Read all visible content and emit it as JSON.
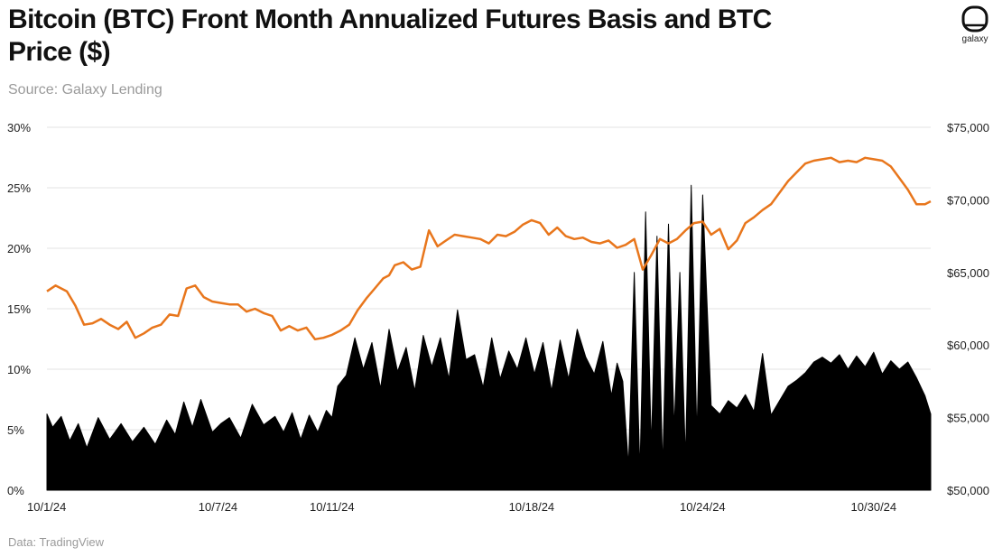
{
  "header": {
    "title": "Bitcoin (BTC) Front Month Annualized Futures Basis and BTC Price ($)",
    "subtitle": "Source: Galaxy Lending",
    "logo_text": "galaxy"
  },
  "footer": {
    "note": "Data: TradingView"
  },
  "colors": {
    "basis": "#000000",
    "price": "#e8761c",
    "grid": "#e3e3e3"
  },
  "chart_data": {
    "type": "area",
    "x_axis": {
      "start": "10/1/24",
      "end": "10/31/24",
      "tick_labels": [
        "10/1/24",
        "10/7/24",
        "10/11/24",
        "10/18/24",
        "10/24/24",
        "10/30/24"
      ],
      "tick_days": [
        0,
        6,
        10,
        17,
        23,
        29
      ]
    },
    "y_left": {
      "ylim": [
        0,
        30
      ],
      "ticks": [
        "0%",
        "5%",
        "10%",
        "15%",
        "20%",
        "25%",
        "30%"
      ],
      "tick_values": [
        0,
        5,
        10,
        15,
        20,
        25,
        30
      ]
    },
    "y_right": {
      "ylim": [
        50000,
        75000
      ],
      "ticks": [
        "$50,000",
        "$55,000",
        "$60,000",
        "$65,000",
        "$70,000",
        "$75,000"
      ],
      "tick_values": [
        50000,
        55000,
        60000,
        65000,
        70000,
        75000
      ]
    },
    "grid": true,
    "series": [
      {
        "kind": "area",
        "axis": "left",
        "x_days": [
          0,
          0.2,
          0.5,
          0.8,
          1.1,
          1.4,
          1.8,
          2.2,
          2.6,
          3.0,
          3.4,
          3.8,
          4.2,
          4.5,
          4.8,
          5.1,
          5.4,
          5.8,
          6.1,
          6.4,
          6.8,
          7.2,
          7.6,
          8.0,
          8.3,
          8.6,
          8.9,
          9.2,
          9.5,
          9.8,
          10.0,
          10.2,
          10.5,
          10.8,
          11.1,
          11.4,
          11.7,
          12.0,
          12.3,
          12.6,
          12.9,
          13.2,
          13.5,
          13.8,
          14.1,
          14.4,
          14.7,
          15.0,
          15.3,
          15.6,
          15.9,
          16.2,
          16.5,
          16.8,
          17.1,
          17.4,
          17.7,
          18.0,
          18.3,
          18.6,
          18.9,
          19.2,
          19.5,
          19.8,
          20.0,
          20.2,
          20.4,
          20.6,
          20.8,
          21.0,
          21.2,
          21.4,
          21.6,
          21.8,
          22.0,
          22.2,
          22.4,
          22.6,
          22.8,
          23.0,
          23.3,
          23.6,
          23.9,
          24.2,
          24.5,
          24.8,
          25.1,
          25.4,
          25.7,
          26.0,
          26.3,
          26.6,
          26.9,
          27.2,
          27.5,
          27.8,
          28.1,
          28.4,
          28.7,
          29.0,
          29.3,
          29.6,
          29.9,
          30.2,
          30.5,
          30.8,
          31.0
        ],
        "values": [
          6.3,
          5.2,
          6.1,
          4.1,
          5.5,
          3.5,
          6.0,
          4.2,
          5.5,
          4.0,
          5.2,
          3.8,
          5.8,
          4.6,
          7.3,
          5.2,
          7.5,
          4.8,
          5.5,
          6.0,
          4.3,
          7.1,
          5.4,
          6.1,
          4.8,
          6.4,
          4.2,
          6.2,
          4.8,
          6.6,
          6.0,
          8.6,
          9.5,
          12.6,
          10.0,
          12.2,
          8.4,
          13.3,
          9.8,
          11.8,
          8.2,
          12.8,
          10.2,
          12.6,
          9.2,
          14.9,
          10.8,
          11.2,
          8.5,
          12.6,
          9.2,
          11.5,
          10.0,
          12.6,
          9.6,
          12.2,
          8.2,
          12.4,
          9.2,
          13.3,
          11.0,
          9.6,
          12.3,
          7.8,
          10.5,
          9.0,
          2.0,
          18.0,
          1.5,
          23.0,
          3.5,
          21.0,
          1.8,
          22.0,
          5.0,
          18.0,
          2.5,
          25.2,
          4.5,
          24.4,
          7.0,
          6.3,
          7.4,
          6.8,
          7.9,
          6.5,
          11.3,
          6.2,
          7.4,
          8.6,
          9.1,
          9.7,
          10.6,
          11.0,
          10.5,
          11.2,
          10.0,
          11.1,
          10.2,
          11.4,
          9.6,
          10.7,
          10.0,
          10.6,
          9.3,
          7.8,
          6.3
        ]
      },
      {
        "kind": "line",
        "axis": "right",
        "x_days": [
          0,
          0.3,
          0.7,
          1.0,
          1.3,
          1.6,
          1.9,
          2.2,
          2.5,
          2.8,
          3.1,
          3.4,
          3.7,
          4.0,
          4.3,
          4.6,
          4.9,
          5.2,
          5.5,
          5.8,
          6.1,
          6.4,
          6.7,
          7.0,
          7.3,
          7.6,
          7.9,
          8.2,
          8.5,
          8.8,
          9.1,
          9.4,
          9.7,
          10.0,
          10.3,
          10.6,
          10.9,
          11.2,
          11.5,
          11.8,
          12.0,
          12.2,
          12.5,
          12.8,
          13.1,
          13.4,
          13.7,
          14.0,
          14.3,
          14.6,
          14.9,
          15.2,
          15.5,
          15.8,
          16.1,
          16.4,
          16.7,
          17.0,
          17.3,
          17.6,
          17.9,
          18.2,
          18.5,
          18.8,
          19.1,
          19.4,
          19.7,
          20.0,
          20.3,
          20.6,
          20.9,
          21.2,
          21.5,
          21.8,
          22.1,
          22.4,
          22.7,
          23.0,
          23.3,
          23.6,
          23.9,
          24.2,
          24.5,
          24.8,
          25.1,
          25.4,
          25.7,
          26.0,
          26.3,
          26.6,
          26.9,
          27.2,
          27.5,
          27.8,
          28.1,
          28.4,
          28.7,
          29.0,
          29.3,
          29.6,
          29.9,
          30.2,
          30.5,
          30.8,
          31.0
        ],
        "values": [
          63700,
          64100,
          63700,
          62700,
          61400,
          61500,
          61800,
          61400,
          61100,
          61600,
          60500,
          60800,
          61200,
          61400,
          62100,
          62000,
          63900,
          64100,
          63300,
          63000,
          62900,
          62800,
          62800,
          62300,
          62500,
          62200,
          62000,
          61000,
          61300,
          61000,
          61200,
          60400,
          60500,
          60700,
          61000,
          61400,
          62400,
          63200,
          63900,
          64600,
          64800,
          65500,
          65700,
          65200,
          65400,
          67900,
          66800,
          67200,
          67600,
          67500,
          67400,
          67300,
          67000,
          67600,
          67500,
          67800,
          68300,
          68600,
          68400,
          67600,
          68100,
          67500,
          67300,
          67400,
          67100,
          67000,
          67200,
          66700,
          66900,
          67300,
          65200,
          66200,
          67300,
          67000,
          67300,
          67900,
          68400,
          68500,
          67600,
          68000,
          66600,
          67200,
          68400,
          68800,
          69300,
          69700,
          70500,
          71300,
          71900,
          72500,
          72700,
          72800,
          72900,
          72600,
          72700,
          72600,
          72900,
          72800,
          72700,
          72300,
          71500,
          70700,
          69700,
          69700,
          69900
        ]
      }
    ]
  }
}
